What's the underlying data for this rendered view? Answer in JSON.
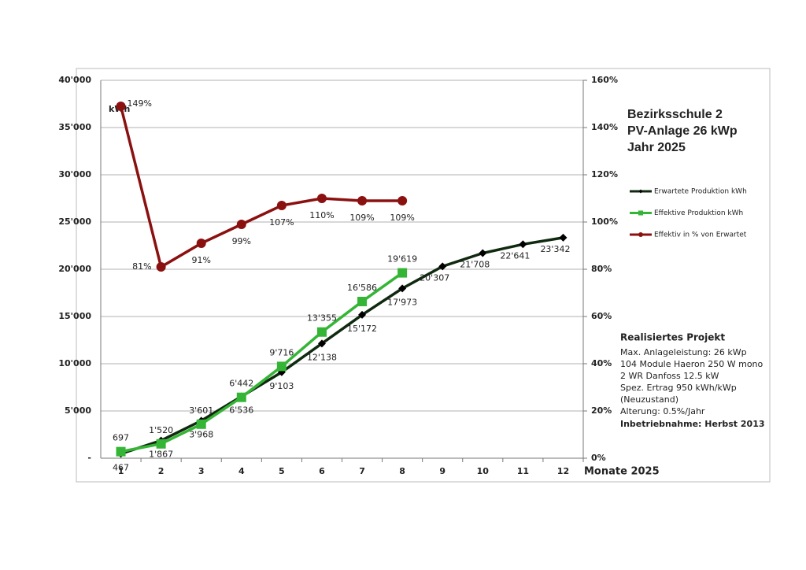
{
  "chart_data": {
    "type": "line",
    "title": [
      "Bezirksschule 2",
      "PV-Anlage 26 kWp",
      "Jahr 2025"
    ],
    "y_label": "kWh",
    "x_label": "Monate 2025",
    "categories": [
      "1",
      "2",
      "3",
      "4",
      "5",
      "6",
      "7",
      "8",
      "9",
      "10",
      "11",
      "12"
    ],
    "ylim": [
      0,
      40000
    ],
    "yticks": [
      {
        "value": 0,
        "label": "-"
      },
      {
        "value": 5000,
        "label": "5'000"
      },
      {
        "value": 10000,
        "label": "10'000"
      },
      {
        "value": 15000,
        "label": "15'000"
      },
      {
        "value": 20000,
        "label": "20'000"
      },
      {
        "value": 25000,
        "label": "25'000"
      },
      {
        "value": 30000,
        "label": "30'000"
      },
      {
        "value": 35000,
        "label": "35'000"
      },
      {
        "value": 40000,
        "label": "40'000"
      }
    ],
    "y2lim": [
      0,
      160
    ],
    "y2ticks": [
      {
        "value": 0,
        "label": "0%"
      },
      {
        "value": 20,
        "label": "20%"
      },
      {
        "value": 40,
        "label": "40%"
      },
      {
        "value": 60,
        "label": "60%"
      },
      {
        "value": 80,
        "label": "80%"
      },
      {
        "value": 100,
        "label": "100%"
      },
      {
        "value": 120,
        "label": "120%"
      },
      {
        "value": 140,
        "label": "140%"
      },
      {
        "value": 160,
        "label": "160%"
      }
    ],
    "grid": true,
    "series": [
      {
        "name": "Erwartete Produktion kWh",
        "color": "#0f2a0f",
        "marker": "diamond",
        "values": [
          467,
          1867,
          3968,
          6536,
          9103,
          12138,
          15172,
          17973,
          20307,
          21708,
          22641,
          23342
        ],
        "value_labels": [
          "467",
          "1'867",
          "3'968",
          "6'536",
          "9'103",
          "12'138",
          "15'172",
          "17'973",
          "20'307",
          "21'708",
          "22'641",
          "23'342"
        ]
      },
      {
        "name": "Effektive Produktion kWh",
        "color": "#35b535",
        "marker": "square",
        "values": [
          697,
          1520,
          3601,
          6442,
          9716,
          13355,
          16586,
          19619,
          null,
          null,
          null,
          null
        ],
        "value_labels": [
          "697",
          "1'520",
          "3'601",
          "6'442",
          "9'716",
          "13'355",
          "16'586",
          "19'619",
          null,
          null,
          null,
          null
        ]
      },
      {
        "name": "Effektiv in % von Erwartet",
        "color": "#8b1010",
        "marker": "circle",
        "axis": "y2",
        "values": [
          149,
          81,
          91,
          99,
          107,
          110,
          109,
          109,
          null,
          null,
          null,
          null
        ],
        "value_labels": [
          "149%",
          "81%",
          "91%",
          "99%",
          "107%",
          "110%",
          "109%",
          "109%",
          null,
          null,
          null,
          null
        ]
      }
    ],
    "info": {
      "heading": "Realisiertes Projekt",
      "lines": [
        "Max. Anlageleistung: 26 kWp",
        "104 Module Haeron 250 W mono",
        "2 WR Danfoss 12.5 kW",
        "Spez. Ertrag 950 kWh/kWp",
        "(Neuzustand)",
        "Alterung: 0.5%/Jahr"
      ],
      "footer": "Inbetriebnahme: Herbst 2013"
    }
  }
}
